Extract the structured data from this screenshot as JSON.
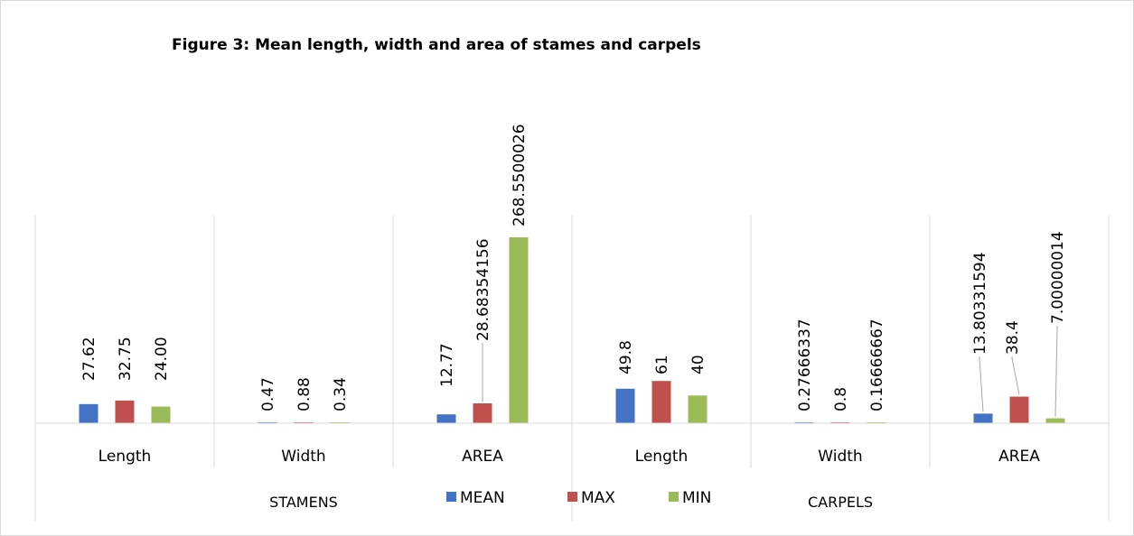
{
  "chart_data": {
    "type": "bar",
    "title": "Figure 3: Mean length, width and area of stames and carpels",
    "groups": [
      {
        "name": "STAMENS",
        "categories": [
          "Length",
          "Width",
          "AREA"
        ]
      },
      {
        "name": "CARPELS",
        "categories": [
          "Length",
          "Width",
          "AREA"
        ]
      }
    ],
    "categories": [
      "Length",
      "Width",
      "AREA",
      "Length",
      "Width",
      "AREA"
    ],
    "series": [
      {
        "name": "MEAN",
        "color": "#4472C4",
        "values": [
          27.62,
          0.47,
          12.77,
          49.8,
          0.27666337,
          13.80331594
        ],
        "labels": [
          "27.62",
          "0.47",
          "12.77",
          "49.8",
          "0.27666337",
          "13.80331594"
        ]
      },
      {
        "name": "MAX",
        "color": "#C0504D",
        "values": [
          32.75,
          0.88,
          28.68354156,
          61,
          0.8,
          38.4
        ],
        "labels": [
          "32.75",
          "0.88",
          "28.68354156",
          "61",
          "0.8",
          "38.4"
        ]
      },
      {
        "name": "MIN",
        "color": "#9BBB59",
        "values": [
          24.0,
          0.34,
          268.5500026,
          40,
          0.16666667,
          7.00000014
        ],
        "labels": [
          "24.00",
          "0.34",
          "268.5500026",
          "40",
          "0.16666667",
          "7.00000014"
        ]
      }
    ],
    "ylim": [
      0,
      270
    ],
    "grid": false,
    "legend_position": "bottom"
  }
}
